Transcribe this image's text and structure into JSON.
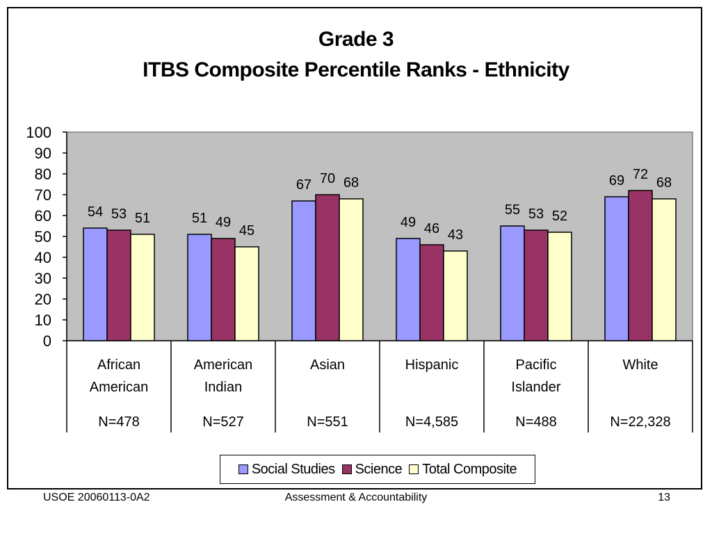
{
  "title": "Grade 3",
  "subtitle": "ITBS Composite Percentile Ranks - Ethnicity",
  "footer": {
    "left": "USOE 20060113-0A2",
    "center": "Assessment & Accountability",
    "right": "13"
  },
  "colors": {
    "plot_background": "#c0c0c0",
    "social_studies": "#9999ff",
    "science": "#993366",
    "total_composite": "#ffffcc"
  },
  "chart_data": {
    "type": "bar",
    "title": "Grade 3",
    "subtitle": "ITBS Composite Percentile Ranks - Ethnicity",
    "categories": [
      {
        "label_lines": [
          "African",
          "American"
        ],
        "n": "N=478"
      },
      {
        "label_lines": [
          "American",
          "Indian"
        ],
        "n": "N=527"
      },
      {
        "label_lines": [
          "Asian"
        ],
        "n": "N=551"
      },
      {
        "label_lines": [
          "Hispanic"
        ],
        "n": "N=4,585"
      },
      {
        "label_lines": [
          "Pacific",
          "Islander"
        ],
        "n": "N=488"
      },
      {
        "label_lines": [
          "White"
        ],
        "n": "N=22,328"
      }
    ],
    "series": [
      {
        "name": "Social Studies",
        "color": "#9999ff",
        "values": [
          54,
          51,
          67,
          49,
          55,
          69
        ]
      },
      {
        "name": "Science",
        "color": "#993366",
        "values": [
          53,
          49,
          70,
          46,
          53,
          72
        ]
      },
      {
        "name": "Total Composite",
        "color": "#ffffcc",
        "values": [
          51,
          45,
          68,
          43,
          52,
          68
        ]
      }
    ],
    "ylim": [
      0,
      100
    ],
    "yticks": [
      0,
      10,
      20,
      30,
      40,
      50,
      60,
      70,
      80,
      90,
      100
    ],
    "grid": false,
    "legend_position": "bottom"
  }
}
